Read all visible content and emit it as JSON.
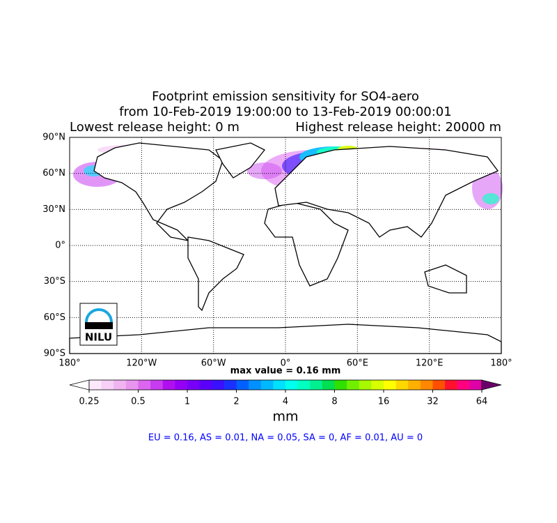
{
  "map": {
    "title_lines": [
      "Footprint emission sensitivity for SO4-aero",
      "from 10-Feb-2019 19:00:00 to 13-Feb-2019 00:00:01"
    ],
    "release_low": "Lowest release height: 0 m",
    "release_high": "Highest release height: 20000 m",
    "xlim": [
      -180,
      180
    ],
    "ylim": [
      -90,
      90
    ],
    "xticks": [
      {
        "value": -180,
        "label": "180°"
      },
      {
        "value": -120,
        "label": "120°W"
      },
      {
        "value": -60,
        "label": "60°W"
      },
      {
        "value": 0,
        "label": "0°"
      },
      {
        "value": 60,
        "label": "60°E"
      },
      {
        "value": 120,
        "label": "120°E"
      },
      {
        "value": 180,
        "label": "180°"
      }
    ],
    "yticks": [
      {
        "value": 90,
        "label": "90°N"
      },
      {
        "value": 60,
        "label": "60°N"
      },
      {
        "value": 30,
        "label": "30°N"
      },
      {
        "value": 0,
        "label": "0°"
      },
      {
        "value": -30,
        "label": "30°S"
      },
      {
        "value": -60,
        "label": "60°S"
      },
      {
        "value": -90,
        "label": "90°S"
      }
    ],
    "grid": true,
    "max_value_text": "max value = 0.16 mm",
    "colorbar": {
      "scale": "log",
      "lim": [
        0.25,
        64
      ],
      "ticks": [
        0.25,
        0.5,
        1,
        2,
        4,
        8,
        16,
        32,
        64
      ],
      "label": "mm",
      "under_color": "#ffffff",
      "over_color": "#6a006a",
      "colors": [
        "#fbe8fb",
        "#f6d0f6",
        "#f0b4f0",
        "#e994ee",
        "#dc66f0",
        "#c83cf0",
        "#b010f0",
        "#9400f5",
        "#7800f8",
        "#5a00fa",
        "#3a10ff",
        "#1a30ff",
        "#0060ff",
        "#0090ff",
        "#00b8ff",
        "#00e0ff",
        "#00ffee",
        "#00ffc0",
        "#00f090",
        "#00e050",
        "#30e000",
        "#70f000",
        "#a8f800",
        "#d8ff00",
        "#ffff00",
        "#ffd800",
        "#ffb000",
        "#ff8800",
        "#ff5000",
        "#ff1030",
        "#ff0080",
        "#e000a8"
      ]
    },
    "summary": "EU = 0.16,  AS = 0.01,  NA = 0.05,  SA = 0,  AF = 0.01,  AU = 0",
    "logo": "NILU"
  }
}
